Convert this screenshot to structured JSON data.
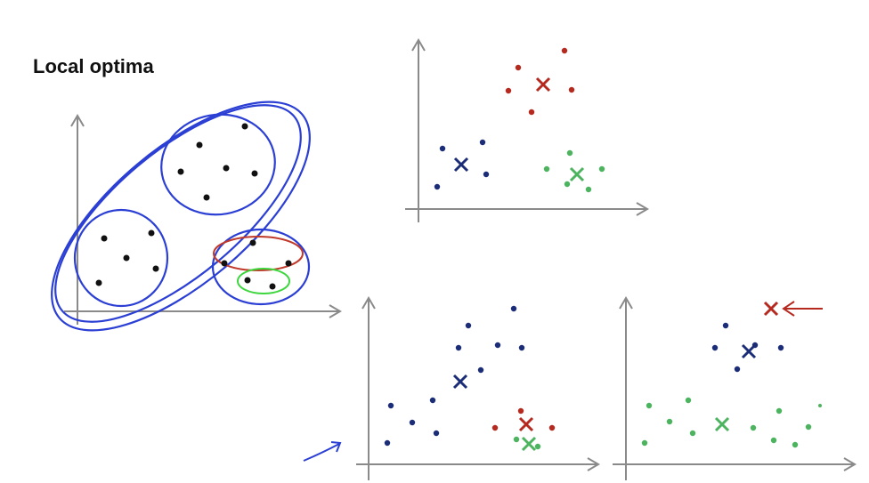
{
  "title": "Local optima"
}
